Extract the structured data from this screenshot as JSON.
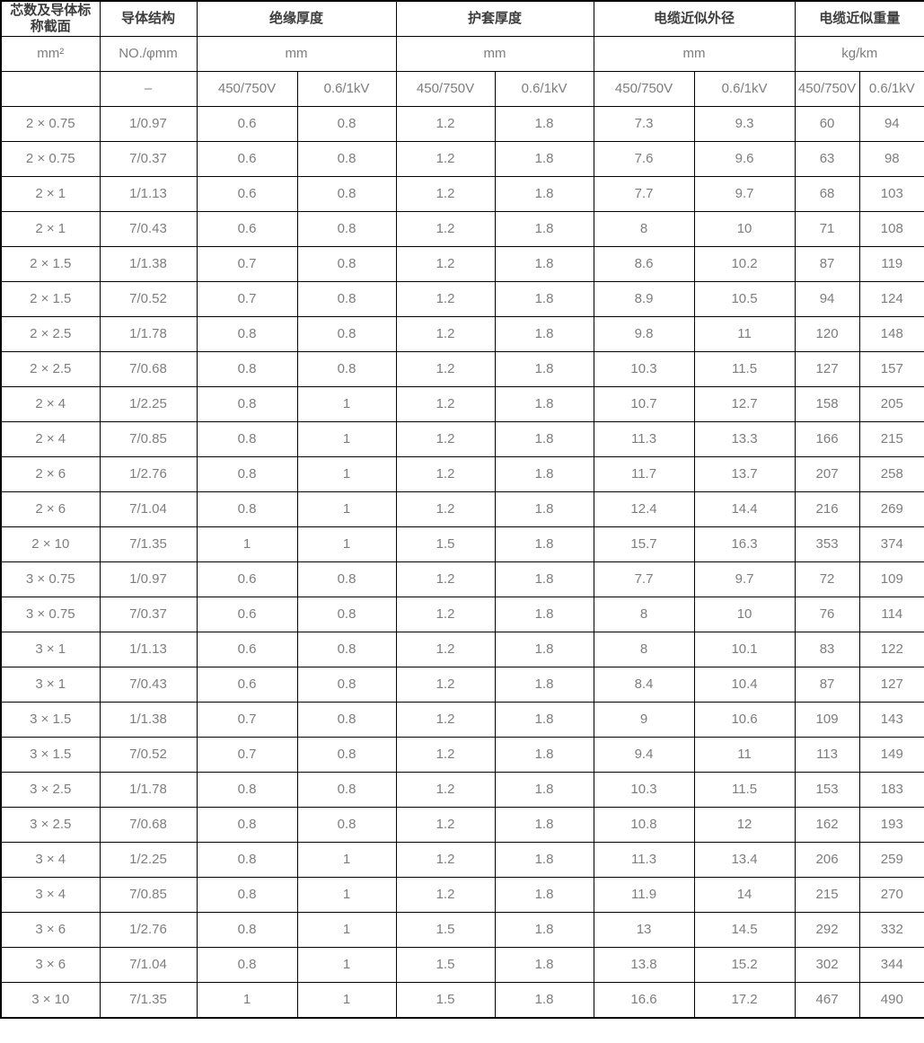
{
  "colors": {
    "border": "#000000",
    "header_text": "#3d3d3d",
    "body_text": "#7d7d7d",
    "background": "#ffffff"
  },
  "table": {
    "header": {
      "section_label": "芯数及导体标称截面",
      "structure_label": "导体结构",
      "groups": [
        "绝缘厚度",
        "护套厚度",
        "电缆近似外径",
        "电缆近似重量"
      ],
      "section_unit": "mm²",
      "structure_unit": "NO./φmm",
      "group_units": [
        "mm",
        "mm",
        "mm",
        "kg/km"
      ],
      "section_sub": "",
      "structure_sub": "–",
      "voltage_low": "450/750V",
      "voltage_high": "0.6/1kV"
    },
    "columns": [
      "cores-and-nominal-section-mm2",
      "conductor-structure-no-phi-mm",
      "insulation-thickness-450-750V-mm",
      "insulation-thickness-0.6-1kV-mm",
      "sheath-thickness-450-750V-mm",
      "sheath-thickness-0.6-1kV-mm",
      "approx-od-450-750V-mm",
      "approx-od-0.6-1kV-mm",
      "approx-weight-450-750V-kg-km",
      "approx-weight-0.6-1kV-kg-km"
    ],
    "rows": [
      [
        "2 × 0.75",
        "1/0.97",
        "0.6",
        "0.8",
        "1.2",
        "1.8",
        "7.3",
        "9.3",
        "60",
        "94"
      ],
      [
        "2 × 0.75",
        "7/0.37",
        "0.6",
        "0.8",
        "1.2",
        "1.8",
        "7.6",
        "9.6",
        "63",
        "98"
      ],
      [
        "2 × 1",
        "1/1.13",
        "0.6",
        "0.8",
        "1.2",
        "1.8",
        "7.7",
        "9.7",
        "68",
        "103"
      ],
      [
        "2 × 1",
        "7/0.43",
        "0.6",
        "0.8",
        "1.2",
        "1.8",
        "8",
        "10",
        "71",
        "108"
      ],
      [
        "2 × 1.5",
        "1/1.38",
        "0.7",
        "0.8",
        "1.2",
        "1.8",
        "8.6",
        "10.2",
        "87",
        "119"
      ],
      [
        "2 × 1.5",
        "7/0.52",
        "0.7",
        "0.8",
        "1.2",
        "1.8",
        "8.9",
        "10.5",
        "94",
        "124"
      ],
      [
        "2 × 2.5",
        "1/1.78",
        "0.8",
        "0.8",
        "1.2",
        "1.8",
        "9.8",
        "11",
        "120",
        "148"
      ],
      [
        "2 × 2.5",
        "7/0.68",
        "0.8",
        "0.8",
        "1.2",
        "1.8",
        "10.3",
        "11.5",
        "127",
        "157"
      ],
      [
        "2 × 4",
        "1/2.25",
        "0.8",
        "1",
        "1.2",
        "1.8",
        "10.7",
        "12.7",
        "158",
        "205"
      ],
      [
        "2 × 4",
        "7/0.85",
        "0.8",
        "1",
        "1.2",
        "1.8",
        "11.3",
        "13.3",
        "166",
        "215"
      ],
      [
        "2 × 6",
        "1/2.76",
        "0.8",
        "1",
        "1.2",
        "1.8",
        "11.7",
        "13.7",
        "207",
        "258"
      ],
      [
        "2 × 6",
        "7/1.04",
        "0.8",
        "1",
        "1.2",
        "1.8",
        "12.4",
        "14.4",
        "216",
        "269"
      ],
      [
        "2 × 10",
        "7/1.35",
        "1",
        "1",
        "1.5",
        "1.8",
        "15.7",
        "16.3",
        "353",
        "374"
      ],
      [
        "3 × 0.75",
        "1/0.97",
        "0.6",
        "0.8",
        "1.2",
        "1.8",
        "7.7",
        "9.7",
        "72",
        "109"
      ],
      [
        "3 × 0.75",
        "7/0.37",
        "0.6",
        "0.8",
        "1.2",
        "1.8",
        "8",
        "10",
        "76",
        "114"
      ],
      [
        "3 × 1",
        "1/1.13",
        "0.6",
        "0.8",
        "1.2",
        "1.8",
        "8",
        "10.1",
        "83",
        "122"
      ],
      [
        "3 × 1",
        "7/0.43",
        "0.6",
        "0.8",
        "1.2",
        "1.8",
        "8.4",
        "10.4",
        "87",
        "127"
      ],
      [
        "3 × 1.5",
        "1/1.38",
        "0.7",
        "0.8",
        "1.2",
        "1.8",
        "9",
        "10.6",
        "109",
        "143"
      ],
      [
        "3 × 1.5",
        "7/0.52",
        "0.7",
        "0.8",
        "1.2",
        "1.8",
        "9.4",
        "11",
        "113",
        "149"
      ],
      [
        "3 × 2.5",
        "1/1.78",
        "0.8",
        "0.8",
        "1.2",
        "1.8",
        "10.3",
        "11.5",
        "153",
        "183"
      ],
      [
        "3 × 2.5",
        "7/0.68",
        "0.8",
        "0.8",
        "1.2",
        "1.8",
        "10.8",
        "12",
        "162",
        "193"
      ],
      [
        "3 × 4",
        "1/2.25",
        "0.8",
        "1",
        "1.2",
        "1.8",
        "11.3",
        "13.4",
        "206",
        "259"
      ],
      [
        "3 × 4",
        "7/0.85",
        "0.8",
        "1",
        "1.2",
        "1.8",
        "11.9",
        "14",
        "215",
        "270"
      ],
      [
        "3 × 6",
        "1/2.76",
        "0.8",
        "1",
        "1.5",
        "1.8",
        "13",
        "14.5",
        "292",
        "332"
      ],
      [
        "3 × 6",
        "7/1.04",
        "0.8",
        "1",
        "1.5",
        "1.8",
        "13.8",
        "15.2",
        "302",
        "344"
      ],
      [
        "3 × 10",
        "7/1.35",
        "1",
        "1",
        "1.5",
        "1.8",
        "16.6",
        "17.2",
        "467",
        "490"
      ]
    ]
  }
}
